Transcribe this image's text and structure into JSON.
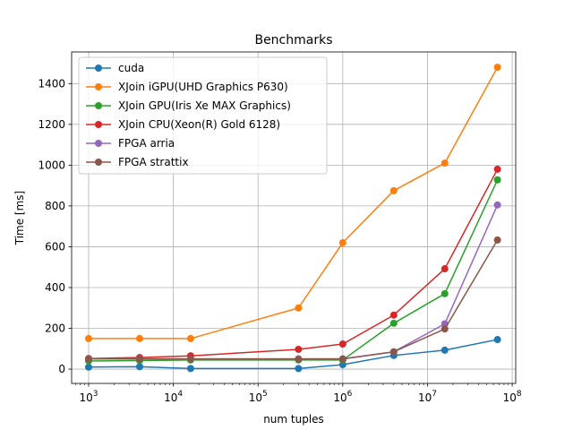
{
  "chart_data": {
    "type": "line",
    "title": "Benchmarks",
    "xlabel": "num tuples",
    "ylabel": "Time [ms]",
    "xscale": "log",
    "xlim": [
      630,
      110000000
    ],
    "ylim": [
      -70,
      1555
    ],
    "grid": true,
    "legend_position": "top-left",
    "x": [
      1000,
      4000,
      16000,
      300000,
      1000000,
      4000000,
      16000000,
      67000000
    ],
    "x_ticks": [
      {
        "value": 1000,
        "base": "10",
        "exp": "3"
      },
      {
        "value": 10000,
        "base": "10",
        "exp": "4"
      },
      {
        "value": 100000,
        "base": "10",
        "exp": "5"
      },
      {
        "value": 1000000,
        "base": "10",
        "exp": "6"
      },
      {
        "value": 10000000,
        "base": "10",
        "exp": "7"
      },
      {
        "value": 100000000,
        "base": "10",
        "exp": "8"
      }
    ],
    "y_ticks": [
      {
        "value": 0,
        "label": "0"
      },
      {
        "value": 200,
        "label": "200"
      },
      {
        "value": 400,
        "label": "400"
      },
      {
        "value": 600,
        "label": "600"
      },
      {
        "value": 800,
        "label": "800"
      },
      {
        "value": 1000,
        "label": "1000"
      },
      {
        "value": 1200,
        "label": "1200"
      },
      {
        "value": 1400,
        "label": "1400"
      }
    ],
    "series": [
      {
        "name": "cuda",
        "color": "#1f77b4",
        "values": [
          10,
          12,
          3,
          3,
          22,
          67,
          93,
          145
        ]
      },
      {
        "name": "XJoin iGPU(UHD Graphics P630)",
        "color": "#ff7f0e",
        "values": [
          150,
          150,
          150,
          300,
          620,
          875,
          1010,
          1480
        ]
      },
      {
        "name": "XJoin GPU(Iris Xe MAX Graphics)",
        "color": "#2ca02c",
        "values": [
          40,
          42,
          45,
          45,
          45,
          225,
          370,
          928
        ]
      },
      {
        "name": "XJoin CPU(Xeon(R) Gold 6128)",
        "color": "#d62728",
        "values": [
          52,
          57,
          65,
          97,
          123,
          265,
          492,
          980
        ]
      },
      {
        "name": "FPGA arria",
        "color": "#9467bd",
        "values": [
          50,
          50,
          50,
          50,
          50,
          85,
          222,
          805
        ]
      },
      {
        "name": "FPGA strattix",
        "color": "#8c564b",
        "values": [
          50,
          50,
          50,
          50,
          50,
          85,
          197,
          633
        ]
      }
    ]
  }
}
